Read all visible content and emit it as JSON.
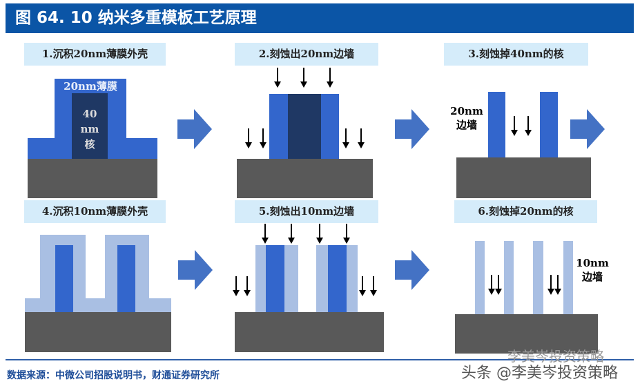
{
  "title": "图 64. 10 纳米多重模板工艺原理",
  "steps": [
    {
      "label": "1.沉积20nm薄膜外壳",
      "film_text": "20nm薄膜",
      "core_text": [
        "40",
        "nm",
        "核"
      ]
    },
    {
      "label": "2.刻蚀出20nm边墙"
    },
    {
      "label": "3.刻蚀掉40nm的核",
      "side_text": [
        "20nm",
        "边墙"
      ]
    },
    {
      "label": "4.沉积10nm薄膜外壳"
    },
    {
      "label": "5.刻蚀出10nm边墙"
    },
    {
      "label": "6.刻蚀掉20nm的核",
      "side_text": [
        "10nm",
        "边墙"
      ]
    }
  ],
  "footer": {
    "source": "数据来源：中微公司招股说明书，财通证券研究所"
  },
  "watermark": {
    "line1": "李美岑投资策略",
    "line2": "头条 @李美岑投资策略"
  },
  "colors": {
    "title_bar": "#0b55a6",
    "core": "#1f3864",
    "film_20nm": "#3366cc",
    "film_10nm": "#a9bfe3",
    "substrate": "#595959",
    "label_bg": "#d5ecfa",
    "arrow": "#4472c4"
  }
}
